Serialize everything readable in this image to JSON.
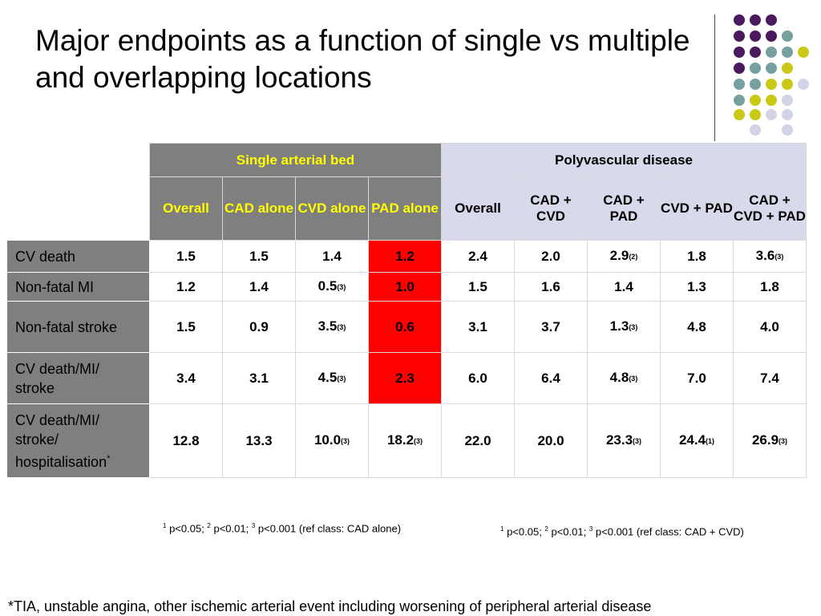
{
  "title": "Major endpoints as a function of single vs multiple and overlapping locations",
  "colors": {
    "header_single_bg": "#7f7f7f",
    "header_single_text": "#ffff00",
    "header_poly_bg": "#d9d9ec",
    "row_label_bg": "#7f7f7f",
    "highlight_red": "#ff0000",
    "dot_purple": "#4b1a5e",
    "dot_teal": "#76a1a0",
    "dot_yellow": "#c9c916",
    "dot_lavender": "#d3d3e6"
  },
  "decor": {
    "dots": [
      "purple",
      "purple",
      "purple",
      "purple",
      "purple",
      "purple",
      "teal",
      "purple",
      "purple",
      "teal",
      "teal",
      "yellow",
      "purple",
      "teal",
      "teal",
      "yellow",
      "teal",
      "teal",
      "yellow",
      "yellow",
      "lavender",
      "teal",
      "yellow",
      "yellow",
      "lavender",
      "yellow",
      "yellow",
      "lavender",
      "lavender",
      "lavender",
      "lavender"
    ]
  },
  "table": {
    "group_single": "Single arterial bed",
    "group_poly": "Polyvascular disease",
    "subheaders_single": [
      "Overall",
      "CAD alone",
      "CVD alone",
      "PAD alone"
    ],
    "subheaders_poly": [
      "Overall",
      "CAD + CVD",
      "CAD + PAD",
      "CVD + PAD",
      "CAD + CVD + PAD"
    ],
    "rows": [
      {
        "label": "CV death",
        "cells": [
          {
            "v": "1.5",
            "ref": ""
          },
          {
            "v": "1.5",
            "ref": ""
          },
          {
            "v": "1.4",
            "ref": ""
          },
          {
            "v": "1.2",
            "ref": ""
          },
          {
            "v": "2.4",
            "ref": ""
          },
          {
            "v": "2.0",
            "ref": ""
          },
          {
            "v": "2.9",
            "ref": "(2)"
          },
          {
            "v": "1.8",
            "ref": ""
          },
          {
            "v": "3.6",
            "ref": "(3)"
          }
        ]
      },
      {
        "label": "Non-fatal MI",
        "cells": [
          {
            "v": "1.2",
            "ref": ""
          },
          {
            "v": "1.4",
            "ref": ""
          },
          {
            "v": "0.5",
            "ref": "(3)"
          },
          {
            "v": "1.0",
            "ref": ""
          },
          {
            "v": "1.5",
            "ref": ""
          },
          {
            "v": "1.6",
            "ref": ""
          },
          {
            "v": "1.4",
            "ref": ""
          },
          {
            "v": "1.3",
            "ref": ""
          },
          {
            "v": "1.8",
            "ref": ""
          }
        ]
      },
      {
        "label": "Non-fatal stroke",
        "cells": [
          {
            "v": "1.5",
            "ref": ""
          },
          {
            "v": "0.9",
            "ref": ""
          },
          {
            "v": "3.5",
            "ref": "(3)"
          },
          {
            "v": "0.6",
            "ref": ""
          },
          {
            "v": "3.1",
            "ref": ""
          },
          {
            "v": "3.7",
            "ref": ""
          },
          {
            "v": "1.3",
            "ref": "(3)"
          },
          {
            "v": "4.8",
            "ref": ""
          },
          {
            "v": "4.0",
            "ref": ""
          }
        ]
      },
      {
        "label": "CV death/MI/ stroke",
        "cells": [
          {
            "v": "3.4",
            "ref": ""
          },
          {
            "v": "3.1",
            "ref": ""
          },
          {
            "v": "4.5",
            "ref": "(3)"
          },
          {
            "v": "2.3",
            "ref": ""
          },
          {
            "v": "6.0",
            "ref": ""
          },
          {
            "v": "6.4",
            "ref": ""
          },
          {
            "v": "4.8",
            "ref": "(3)"
          },
          {
            "v": "7.0",
            "ref": ""
          },
          {
            "v": "7.4",
            "ref": ""
          }
        ]
      },
      {
        "label": "CV death/MI/ stroke/ hospitalisation",
        "label_sup": "*",
        "cells": [
          {
            "v": "12.8",
            "ref": ""
          },
          {
            "v": "13.3",
            "ref": ""
          },
          {
            "v": "10.0",
            "ref": "(3)"
          },
          {
            "v": "18.2",
            "ref": "(3)"
          },
          {
            "v": "22.0",
            "ref": ""
          },
          {
            "v": "20.0",
            "ref": ""
          },
          {
            "v": "23.3",
            "ref": "(3)"
          },
          {
            "v": "24.4",
            "ref": "(1)"
          },
          {
            "v": "26.9",
            "ref": "(3)"
          }
        ]
      }
    ]
  },
  "footnote_single": {
    "s1": "1",
    "t1": " p<0.05; ",
    "s2": "2",
    "t2": " p<0.01; ",
    "s3": "3",
    "t3": " p<0.001 (ref class: CAD alone)"
  },
  "footnote_poly": {
    "s1": "1",
    "t1": " p<0.05; ",
    "s2": "2",
    "t2": " p<0.01; ",
    "s3": "3",
    "t3": " p<0.001 (ref class: CAD + CVD)"
  },
  "bottom_note": "*TIA, unstable angina, other ischemic arterial event including worsening of peripheral arterial disease"
}
